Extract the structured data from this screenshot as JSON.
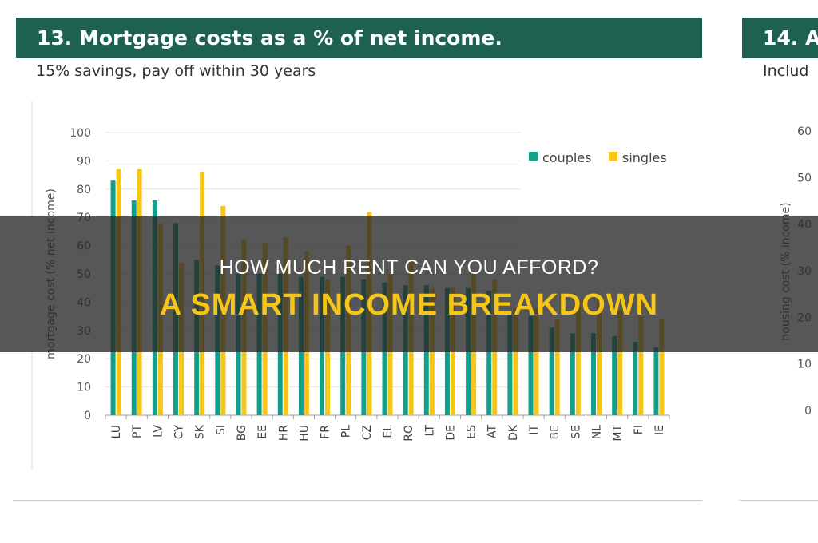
{
  "panel13": {
    "title": "13.  Mortgage costs as a % of net income.",
    "subtitle": "15% savings, pay off within 30 years"
  },
  "panel14": {
    "title": "14.  A",
    "subtitle": "Includ"
  },
  "overlay": {
    "line1": "HOW MUCH RENT CAN YOU AFFORD?",
    "line2": "A SMART INCOME BREAKDOWN"
  },
  "chart_data": [
    {
      "type": "bar",
      "title": "13.  Mortgage costs as a % of net income.",
      "subtitle": "15% savings, pay off within 30 years",
      "ylabel": "mortgage cost (% net income)",
      "xlabel": "",
      "ylim": [
        0,
        100
      ],
      "yticks": [
        0,
        10,
        20,
        30,
        40,
        50,
        60,
        70,
        80,
        90,
        100
      ],
      "grid": true,
      "legend": "top-right",
      "categories": [
        "LU",
        "PT",
        "LV",
        "CY",
        "SK",
        "SI",
        "BG",
        "EE",
        "HR",
        "HU",
        "FR",
        "PL",
        "CZ",
        "EL",
        "RO",
        "LT",
        "DE",
        "ES",
        "AT",
        "DK",
        "IT",
        "BE",
        "SE",
        "NL",
        "MT",
        "FI",
        "IE"
      ],
      "series": [
        {
          "name": "couples",
          "color": "#13a08a",
          "values": [
            83,
            76,
            76,
            68,
            55,
            53,
            50,
            50,
            50,
            49,
            49,
            49,
            48,
            47,
            46,
            46,
            45,
            45,
            44,
            36,
            35,
            31,
            29,
            29,
            28,
            26,
            24
          ]
        },
        {
          "name": "singles",
          "color": "#f5c518",
          "values": [
            87,
            87,
            68,
            54,
            86,
            74,
            62,
            61,
            63,
            58,
            48,
            60,
            72,
            50,
            55,
            45,
            45,
            50,
            48,
            38,
            38,
            34,
            40,
            41,
            37,
            35,
            34
          ]
        }
      ]
    },
    {
      "type": "bar",
      "title": "14.  A",
      "subtitle": "Includ",
      "ylabel": "housing cost (% income)",
      "ylim": [
        0,
        60
      ],
      "yticks": [
        0,
        10,
        20,
        30,
        40,
        50,
        60
      ]
    }
  ]
}
